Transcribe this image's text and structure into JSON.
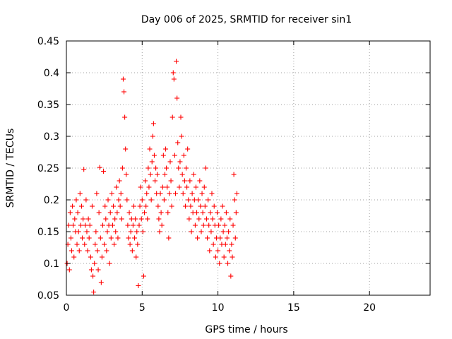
{
  "chart_data": {
    "type": "scatter",
    "title": "Day 006 of 2025, SRMTID for receiver sin1",
    "xlabel": "GPS time / hours",
    "ylabel": "SRMTID / TECUs",
    "xlim": [
      0,
      24
    ],
    "ylim": [
      0.05,
      0.45
    ],
    "xticks": [
      0,
      5,
      10,
      15,
      20
    ],
    "xtick_labels": [
      "0",
      "5",
      "10",
      "15",
      "20"
    ],
    "yticks": [
      0.05,
      0.1,
      0.15,
      0.2,
      0.25,
      0.3,
      0.35,
      0.4,
      0.45
    ],
    "ytick_labels": [
      "0.05",
      "0.1",
      "0.15",
      "0.2",
      "0.25",
      "0.3",
      "0.35",
      "0.4",
      "0.45"
    ],
    "grid": true,
    "marker": "+",
    "marker_color": "#ff0000",
    "x_range_observed": [
      0,
      11.25
    ],
    "series": [
      {
        "name": "sin1",
        "points": [
          [
            0.05,
            0.1
          ],
          [
            0.1,
            0.13
          ],
          [
            0.15,
            0.16
          ],
          [
            0.2,
            0.09
          ],
          [
            0.25,
            0.18
          ],
          [
            0.3,
            0.14
          ],
          [
            0.35,
            0.12
          ],
          [
            0.4,
            0.19
          ],
          [
            0.45,
            0.16
          ],
          [
            0.5,
            0.11
          ],
          [
            0.55,
            0.17
          ],
          [
            0.6,
            0.15
          ],
          [
            0.65,
            0.2
          ],
          [
            0.7,
            0.13
          ],
          [
            0.75,
            0.18
          ],
          [
            0.8,
            0.15
          ],
          [
            0.85,
            0.12
          ],
          [
            0.9,
            0.21
          ],
          [
            0.95,
            0.16
          ],
          [
            1.0,
            0.19
          ],
          [
            1.05,
            0.14
          ],
          [
            1.1,
            0.17
          ],
          [
            1.15,
            0.248
          ],
          [
            1.2,
            0.13
          ],
          [
            1.25,
            0.16
          ],
          [
            1.3,
            0.2
          ],
          [
            1.35,
            0.15
          ],
          [
            1.4,
            0.12
          ],
          [
            1.45,
            0.17
          ],
          [
            1.5,
            0.14
          ],
          [
            1.55,
            0.16
          ],
          [
            1.6,
            0.11
          ],
          [
            1.65,
            0.09
          ],
          [
            1.7,
            0.19
          ],
          [
            1.75,
            0.08
          ],
          [
            1.8,
            0.055
          ],
          [
            1.85,
            0.1
          ],
          [
            1.9,
            0.13
          ],
          [
            1.95,
            0.15
          ],
          [
            2.0,
            0.21
          ],
          [
            2.05,
            0.12
          ],
          [
            2.1,
            0.09
          ],
          [
            2.15,
            0.18
          ],
          [
            2.2,
            0.251
          ],
          [
            2.25,
            0.14
          ],
          [
            2.3,
            0.07
          ],
          [
            2.35,
            0.11
          ],
          [
            2.4,
            0.16
          ],
          [
            2.45,
            0.245
          ],
          [
            2.5,
            0.13
          ],
          [
            2.55,
            0.19
          ],
          [
            2.6,
            0.17
          ],
          [
            2.65,
            0.12
          ],
          [
            2.7,
            0.15
          ],
          [
            2.75,
            0.2
          ],
          [
            2.8,
            0.16
          ],
          [
            2.85,
            0.1
          ],
          [
            2.9,
            0.18
          ],
          [
            2.95,
            0.14
          ],
          [
            3.0,
            0.21
          ],
          [
            3.05,
            0.16
          ],
          [
            3.1,
            0.19
          ],
          [
            3.15,
            0.13
          ],
          [
            3.2,
            0.17
          ],
          [
            3.25,
            0.15
          ],
          [
            3.3,
            0.22
          ],
          [
            3.35,
            0.18
          ],
          [
            3.4,
            0.14
          ],
          [
            3.45,
            0.2
          ],
          [
            3.5,
            0.23
          ],
          [
            3.55,
            0.19
          ],
          [
            3.6,
            0.21
          ],
          [
            3.65,
            0.17
          ],
          [
            3.7,
            0.25
          ],
          [
            3.75,
            0.39
          ],
          [
            3.8,
            0.37
          ],
          [
            3.85,
            0.33
          ],
          [
            3.9,
            0.28
          ],
          [
            3.95,
            0.24
          ],
          [
            4.0,
            0.2
          ],
          [
            4.05,
            0.16
          ],
          [
            4.1,
            0.14
          ],
          [
            4.15,
            0.18
          ],
          [
            4.2,
            0.13
          ],
          [
            4.25,
            0.15
          ],
          [
            4.3,
            0.17
          ],
          [
            4.35,
            0.12
          ],
          [
            4.4,
            0.16
          ],
          [
            4.45,
            0.19
          ],
          [
            4.5,
            0.14
          ],
          [
            4.55,
            0.17
          ],
          [
            4.6,
            0.11
          ],
          [
            4.65,
            0.15
          ],
          [
            4.7,
            0.13
          ],
          [
            4.75,
            0.065
          ],
          [
            4.8,
            0.16
          ],
          [
            4.85,
            0.19
          ],
          [
            4.9,
            0.22
          ],
          [
            4.95,
            0.17
          ],
          [
            5.0,
            0.2
          ],
          [
            5.05,
            0.15
          ],
          [
            5.1,
            0.08
          ],
          [
            5.15,
            0.18
          ],
          [
            5.2,
            0.23
          ],
          [
            5.25,
            0.19
          ],
          [
            5.3,
            0.21
          ],
          [
            5.35,
            0.17
          ],
          [
            5.4,
            0.25
          ],
          [
            5.45,
            0.22
          ],
          [
            5.5,
            0.28
          ],
          [
            5.55,
            0.24
          ],
          [
            5.6,
            0.2
          ],
          [
            5.65,
            0.26
          ],
          [
            5.7,
            0.3
          ],
          [
            5.75,
            0.32
          ],
          [
            5.8,
            0.27
          ],
          [
            5.85,
            0.23
          ],
          [
            5.9,
            0.25
          ],
          [
            5.95,
            0.21
          ],
          [
            6.0,
            0.24
          ],
          [
            6.05,
            0.19
          ],
          [
            6.1,
            0.17
          ],
          [
            6.15,
            0.15
          ],
          [
            6.2,
            0.21
          ],
          [
            6.25,
            0.18
          ],
          [
            6.3,
            0.16
          ],
          [
            6.35,
            0.22
          ],
          [
            6.4,
            0.27
          ],
          [
            6.45,
            0.2
          ],
          [
            6.5,
            0.24
          ],
          [
            6.55,
            0.28
          ],
          [
            6.6,
            0.25
          ],
          [
            6.65,
            0.22
          ],
          [
            6.7,
            0.18
          ],
          [
            6.75,
            0.14
          ],
          [
            6.8,
            0.21
          ],
          [
            6.85,
            0.26
          ],
          [
            6.9,
            0.23
          ],
          [
            6.95,
            0.19
          ],
          [
            7.0,
            0.33
          ],
          [
            7.05,
            0.4
          ],
          [
            7.1,
            0.39
          ],
          [
            7.15,
            0.27
          ],
          [
            7.2,
            0.21
          ],
          [
            7.25,
            0.418
          ],
          [
            7.3,
            0.36
          ],
          [
            7.35,
            0.29
          ],
          [
            7.4,
            0.25
          ],
          [
            7.45,
            0.22
          ],
          [
            7.5,
            0.26
          ],
          [
            7.55,
            0.33
          ],
          [
            7.6,
            0.3
          ],
          [
            7.65,
            0.24
          ],
          [
            7.7,
            0.21
          ],
          [
            7.75,
            0.27
          ],
          [
            7.8,
            0.23
          ],
          [
            7.85,
            0.19
          ],
          [
            7.9,
            0.25
          ],
          [
            7.95,
            0.22
          ],
          [
            8.0,
            0.28
          ],
          [
            8.05,
            0.2
          ],
          [
            8.1,
            0.17
          ],
          [
            8.15,
            0.23
          ],
          [
            8.2,
            0.19
          ],
          [
            8.25,
            0.15
          ],
          [
            8.3,
            0.21
          ],
          [
            8.35,
            0.18
          ],
          [
            8.4,
            0.24
          ],
          [
            8.45,
            0.2
          ],
          [
            8.5,
            0.16
          ],
          [
            8.55,
            0.22
          ],
          [
            8.6,
            0.18
          ],
          [
            8.65,
            0.14
          ],
          [
            8.7,
            0.2
          ],
          [
            8.75,
            0.17
          ],
          [
            8.8,
            0.23
          ],
          [
            8.85,
            0.19
          ],
          [
            8.9,
            0.15
          ],
          [
            8.95,
            0.21
          ],
          [
            9.0,
            0.18
          ],
          [
            9.05,
            0.16
          ],
          [
            9.1,
            0.22
          ],
          [
            9.15,
            0.19
          ],
          [
            9.2,
            0.25
          ],
          [
            9.25,
            0.17
          ],
          [
            9.3,
            0.14
          ],
          [
            9.35,
            0.2
          ],
          [
            9.4,
            0.16
          ],
          [
            9.45,
            0.12
          ],
          [
            9.5,
            0.18
          ],
          [
            9.55,
            0.15
          ],
          [
            9.6,
            0.21
          ],
          [
            9.65,
            0.17
          ],
          [
            9.7,
            0.13
          ],
          [
            9.75,
            0.19
          ],
          [
            9.8,
            0.16
          ],
          [
            9.85,
            0.11
          ],
          [
            9.9,
            0.14
          ],
          [
            9.95,
            0.18
          ],
          [
            10.0,
            0.12
          ],
          [
            10.05,
            0.16
          ],
          [
            10.1,
            0.1
          ],
          [
            10.15,
            0.14
          ],
          [
            10.2,
            0.17
          ],
          [
            10.25,
            0.13
          ],
          [
            10.3,
            0.19
          ],
          [
            10.35,
            0.15
          ],
          [
            10.4,
            0.11
          ],
          [
            10.45,
            0.16
          ],
          [
            10.5,
            0.13
          ],
          [
            10.55,
            0.18
          ],
          [
            10.6,
            0.14
          ],
          [
            10.65,
            0.1
          ],
          [
            10.7,
            0.15
          ],
          [
            10.75,
            0.12
          ],
          [
            10.8,
            0.17
          ],
          [
            10.85,
            0.08
          ],
          [
            10.9,
            0.13
          ],
          [
            10.95,
            0.11
          ],
          [
            11.0,
            0.16
          ],
          [
            11.05,
            0.24
          ],
          [
            11.1,
            0.2
          ],
          [
            11.15,
            0.14
          ],
          [
            11.2,
            0.18
          ],
          [
            11.25,
            0.21
          ]
        ]
      }
    ]
  }
}
